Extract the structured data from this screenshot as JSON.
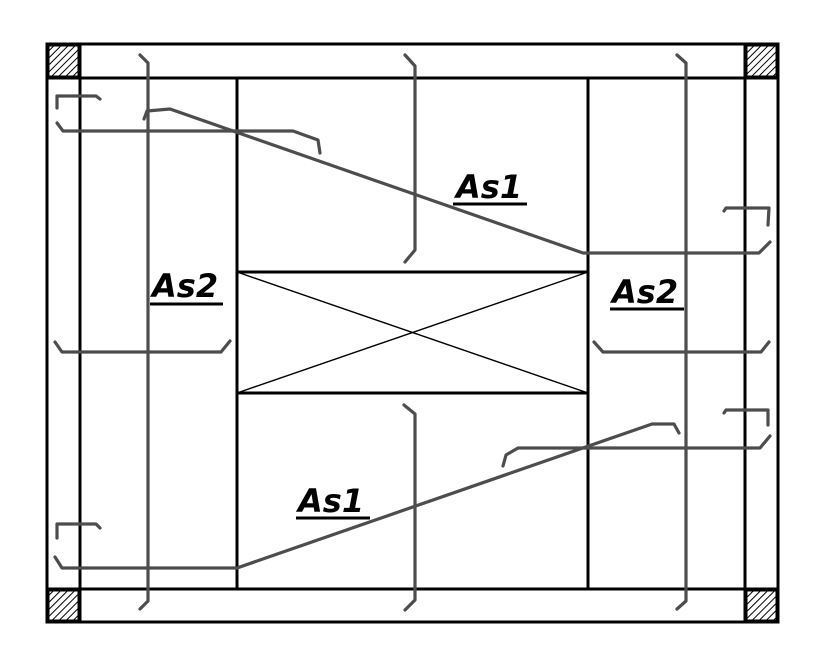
{
  "labels": {
    "as1_top": "As1",
    "as1_bottom": "As1",
    "as2_left": "As2",
    "as2_right": "As2"
  },
  "colors": {
    "frame": "#000000",
    "rebar": "#4d4d4d",
    "column_hatch": "#000000"
  },
  "icons": {
    "columns": "hatched-square",
    "opening": "x-cross-box"
  }
}
